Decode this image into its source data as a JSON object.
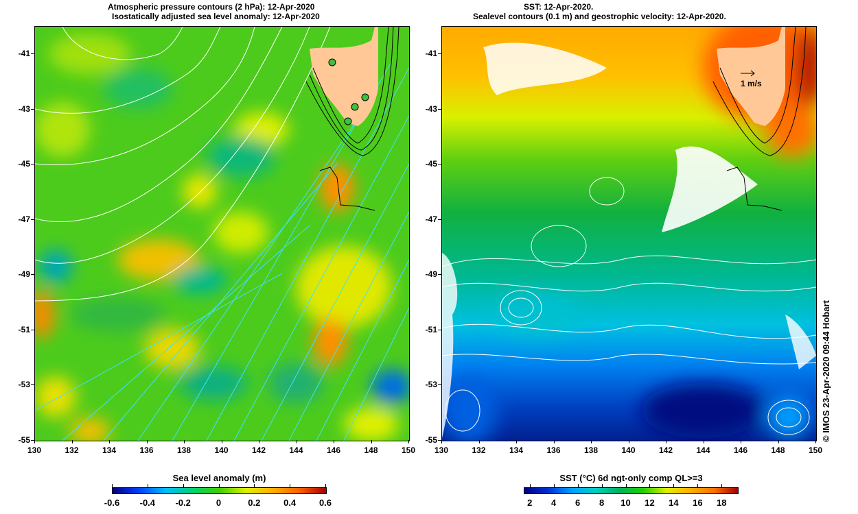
{
  "left_panel": {
    "title_line1": "Atmospheric pressure contours (2 hPa): 12-Apr-2020",
    "title_line2": "Isostatically adjusted sea level anomaly: 12-Apr-2020",
    "colorbar": {
      "label": "Sea level anomaly (m)",
      "ticks": [
        "-0.6",
        "-0.4",
        "-0.2",
        "0",
        "0.2",
        "0.4",
        "0.6"
      ],
      "range": [
        -0.6,
        0.6
      ],
      "colors": [
        "#00007f",
        "#0040ff",
        "#00c0ff",
        "#00d070",
        "#40d000",
        "#e0f000",
        "#ffb000",
        "#ff6000",
        "#a00000"
      ]
    }
  },
  "right_panel": {
    "title_line1": "SST: 12-Apr-2020.",
    "title_line2": "Sealevel contours (0.1 m) and geostrophic velocity: 12-Apr-2020.",
    "velocity_scale_label": "1 m/s",
    "colorbar": {
      "label": "SST (°C) 6d ngt-only comp QL>=3",
      "ticks": [
        "2",
        "4",
        "6",
        "8",
        "10",
        "12",
        "14",
        "16",
        "18"
      ],
      "range": [
        1.5,
        19.3
      ],
      "colors": [
        "#00007f",
        "#0030d0",
        "#00a0ff",
        "#00d0c0",
        "#00b060",
        "#20d000",
        "#e0f000",
        "#ffb000",
        "#ff7000",
        "#a00000"
      ]
    },
    "credit": "© IMOS 23-Apr-2020 09:44 Hobart"
  },
  "axes": {
    "lon_ticks": [
      "130",
      "132",
      "134",
      "136",
      "138",
      "140",
      "142",
      "144",
      "146",
      "148",
      "150"
    ],
    "lat_ticks": [
      "-41",
      "-43",
      "-45",
      "-47",
      "-49",
      "-51",
      "-53",
      "-55"
    ],
    "lon_range": [
      130,
      150
    ],
    "lat_range": [
      -40,
      -55
    ]
  },
  "colors": {
    "land": "#ffc896",
    "pressure_contour": "#ffffff",
    "cyan_contour": "#40e0ff"
  }
}
